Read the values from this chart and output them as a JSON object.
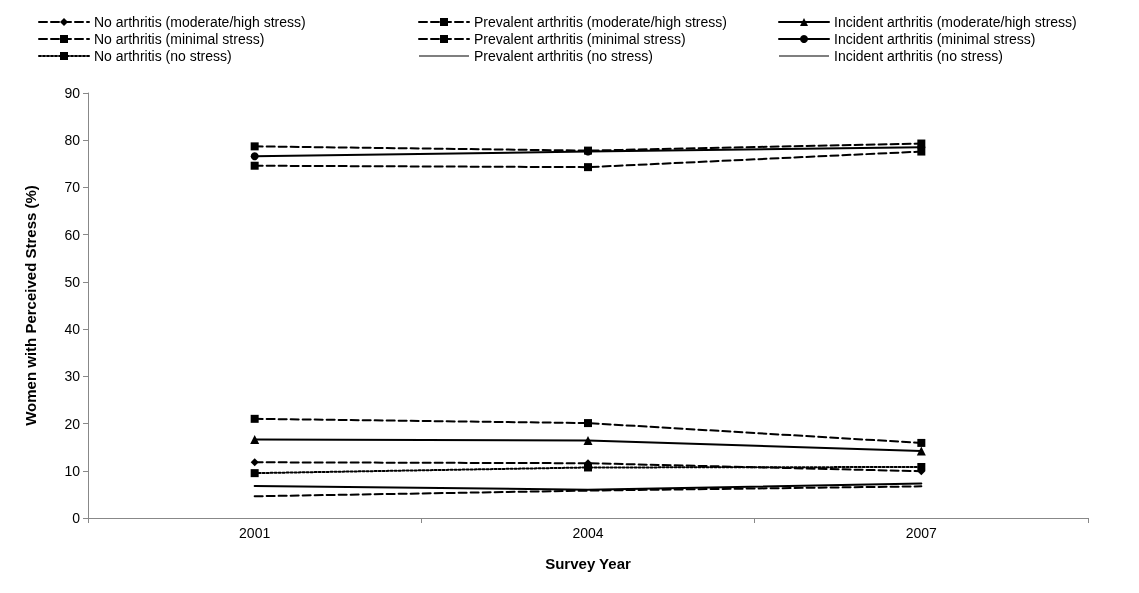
{
  "chart_data": {
    "type": "line",
    "xlabel": "Survey Year",
    "ylabel": "Women with Perceived Stress (%)",
    "categories": [
      "2001",
      "2004",
      "2007"
    ],
    "ylim": [
      0,
      90
    ],
    "yticks": [
      0,
      10,
      20,
      30,
      40,
      50,
      60,
      70,
      80,
      90
    ],
    "grid": false,
    "legend": "top",
    "series": [
      {
        "name": "No arthritis (moderate/high stress)",
        "color": "#000000",
        "marker": "diamond",
        "line_style": "dashed",
        "values": [
          11.8,
          11.6,
          9.9
        ]
      },
      {
        "name": "Prevalent arthritis (moderate/high stress)",
        "color": "#000000",
        "marker": "square",
        "line_style": "dashed",
        "values": [
          21.0,
          20.1,
          15.9
        ]
      },
      {
        "name": "Incident arthritis (moderate/high stress)",
        "color": "#000000",
        "marker": "triangle",
        "line_style": "solid",
        "values": [
          16.6,
          16.4,
          14.2
        ]
      },
      {
        "name": "No arthritis (minimal stress)",
        "color": "#000000",
        "marker": "square",
        "line_style": "dashed",
        "values": [
          78.7,
          77.8,
          79.3
        ]
      },
      {
        "name": "Prevalent arthritis (minimal stress)",
        "color": "#000000",
        "marker": "square",
        "line_style": "dashed",
        "values": [
          74.6,
          74.3,
          77.6
        ]
      },
      {
        "name": "Incident arthritis (minimal stress)",
        "color": "#000000",
        "marker": "circle",
        "line_style": "solid",
        "values": [
          76.6,
          77.6,
          78.5
        ]
      },
      {
        "name": "No arthritis (no stress)",
        "color": "#000000",
        "marker": "square",
        "line_style": "dotted",
        "values": [
          9.5,
          10.7,
          10.8
        ]
      },
      {
        "name": "Prevalent arthritis (no stress)",
        "color": "#000000",
        "marker": "none",
        "line_style": "dashed",
        "values": [
          4.6,
          5.8,
          6.7
        ]
      },
      {
        "name": "Incident arthritis (no stress)",
        "color": "#000000",
        "marker": "none",
        "line_style": "solid",
        "values": [
          6.8,
          6.0,
          7.3
        ]
      }
    ]
  }
}
